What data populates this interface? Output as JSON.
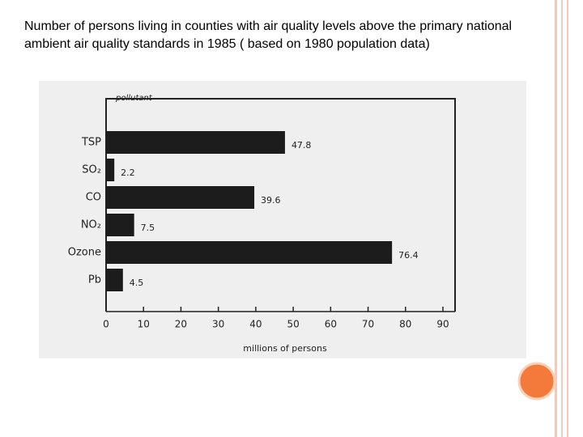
{
  "chart_data": {
    "type": "bar",
    "orientation": "horizontal",
    "title": "Number of persons living in counties with air quality levels above the primary national ambient air quality standards in 1985 ( based on 1980 population data)",
    "y_label": "pollutant",
    "x_label": "millions of persons",
    "categories": [
      "TSP",
      "SO₂",
      "CO",
      "NO₂",
      "Ozone",
      "Pb"
    ],
    "values": [
      47.8,
      2.2,
      39.6,
      7.5,
      76.4,
      4.5
    ],
    "color": "#1c1c1c",
    "xlim": [
      0,
      90
    ],
    "xticks": [
      0,
      10,
      20,
      30,
      40,
      50,
      60,
      70,
      80,
      90
    ]
  }
}
